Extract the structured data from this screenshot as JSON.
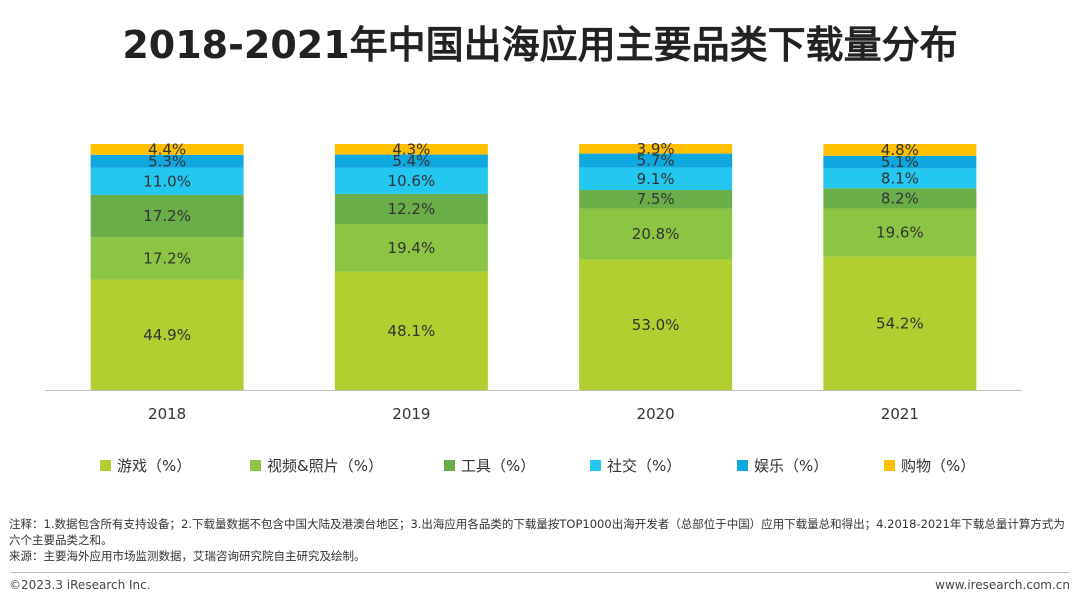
{
  "title": "2018-2021年中国出海应用主要品类下载量分布",
  "chart_data": {
    "type": "bar",
    "stacked": true,
    "categories": [
      "2018",
      "2019",
      "2020",
      "2021"
    ],
    "series": [
      {
        "name": "游戏（%）",
        "color": "#b1cf31",
        "values": [
          44.9,
          48.1,
          53.0,
          54.2
        ]
      },
      {
        "name": "视频&照片（%）",
        "color": "#8cc443",
        "values": [
          17.2,
          19.4,
          20.8,
          19.6
        ]
      },
      {
        "name": "工具（%）",
        "color": "#6aae4a",
        "values": [
          17.2,
          12.2,
          7.5,
          8.2
        ]
      },
      {
        "name": "社交（%）",
        "color": "#23c7ef",
        "values": [
          11.0,
          10.6,
          9.1,
          8.1
        ]
      },
      {
        "name": "娱乐（%）",
        "color": "#0fa7e0",
        "values": [
          5.3,
          5.4,
          5.7,
          5.1
        ]
      },
      {
        "name": "购物（%）",
        "color": "#ffc000",
        "values": [
          4.4,
          4.3,
          3.9,
          4.8
        ]
      }
    ],
    "data_labels": [
      [
        "44.9%",
        "48.1%",
        "53.0%",
        "54.2%"
      ],
      [
        "17.2%",
        "19.4%",
        "20.8%",
        "19.6%"
      ],
      [
        "17.2%",
        "12.2%",
        "7.5%",
        "8.2%"
      ],
      [
        "11.0%",
        "10.6%",
        "9.1%",
        "8.1%"
      ],
      [
        "5.3%",
        "5.4%",
        "5.7%",
        "5.1%"
      ],
      [
        "4.4%",
        "4.3%",
        "3.9%",
        "4.8%"
      ]
    ],
    "ylim": [
      0,
      100
    ],
    "grid": false,
    "legend_position": "bottom",
    "xlabel": "",
    "ylabel": ""
  },
  "notes": {
    "line1": "注释：1.数据包含所有支持设备；2.下载量数据不包含中国大陆及港澳台地区；3.出海应用各品类的下载量按TOP1000出海开发者（总部位于中国）应用下载量总和得出；4.2018-2021年下载总量计算方式为六个主要品类之和。",
    "line2": "来源：主要海外应用市场监测数据，艾瑞咨询研究院自主研究及绘制。"
  },
  "footer": {
    "copyright": "©2023.3 iResearch Inc.",
    "website": "www.iresearch.com.cn"
  }
}
